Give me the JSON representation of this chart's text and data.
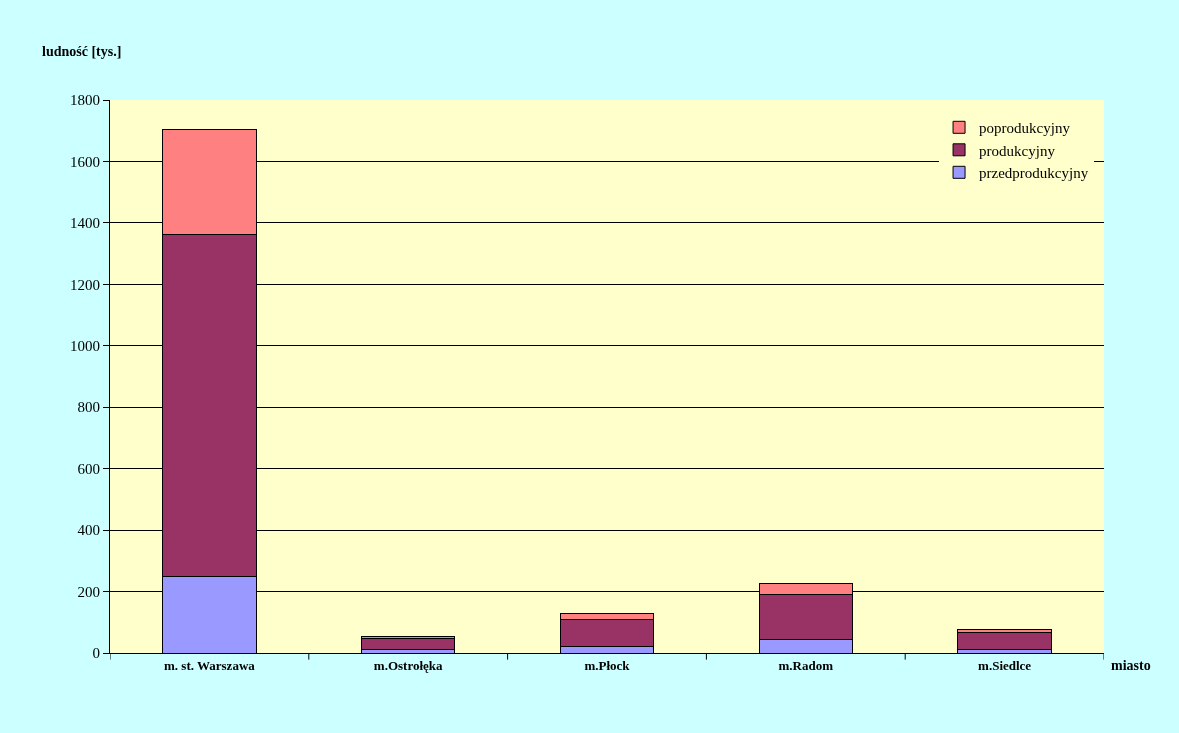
{
  "chart_data": {
    "type": "bar",
    "stacked": true,
    "xlabel": "miasto",
    "ylabel": "ludność [tys.]",
    "categories": [
      "m. st. Warszawa",
      "m.Ostrołęka",
      "m.Płock",
      "m.Radom",
      "m.Siedlce"
    ],
    "series": [
      {
        "name": "przedprodukcyjny",
        "color": "#9999ff",
        "values": [
          248,
          11,
          22,
          43,
          13
        ]
      },
      {
        "name": "produkcyjny",
        "color": "#993366",
        "values": [
          1115,
          37,
          86,
          148,
          53
        ]
      },
      {
        "name": "poprodukcyjny",
        "color": "#ff8080",
        "values": [
          342,
          5,
          20,
          35,
          11
        ]
      }
    ],
    "ylim": [
      0,
      1800
    ],
    "yticks": [
      0,
      200,
      400,
      600,
      800,
      1000,
      1200,
      1400,
      1600,
      1800
    ],
    "grid": "y",
    "legend": "top right"
  }
}
